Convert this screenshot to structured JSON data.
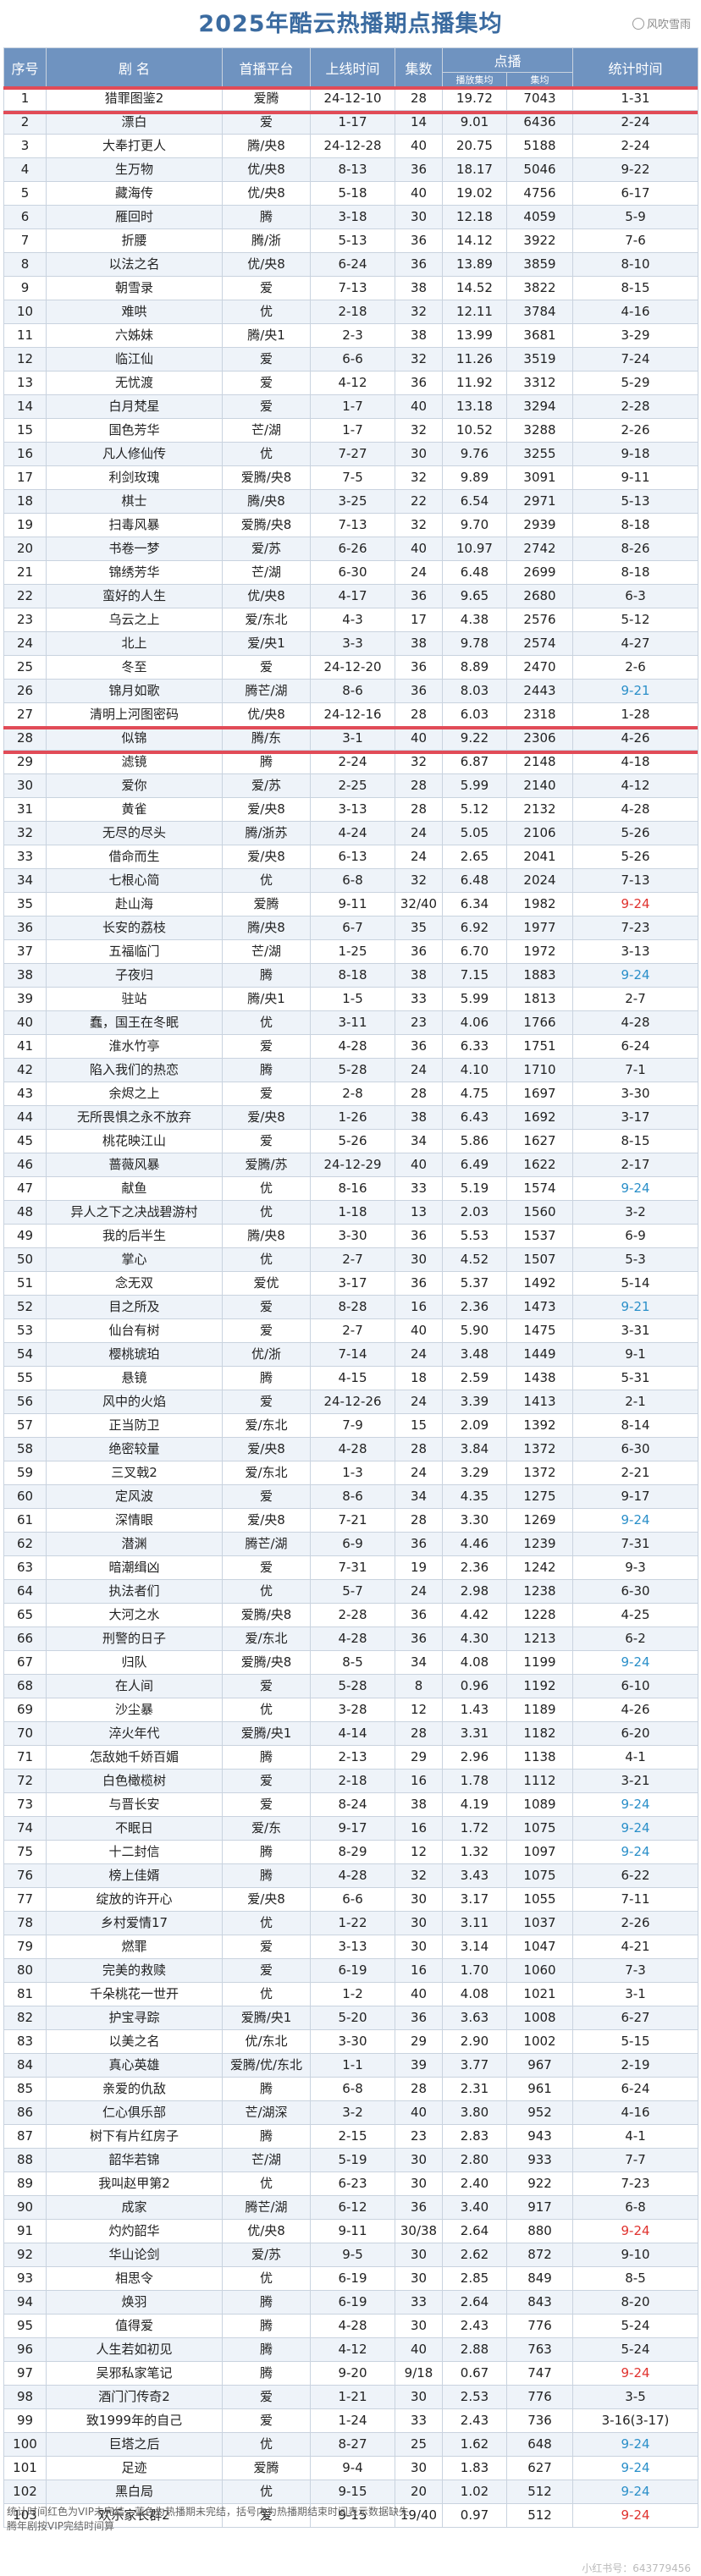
{
  "title": "2025年酷云热播期点播集均",
  "watermark_top": "风吹雪雨",
  "headers": {
    "seq": "序号",
    "name": "剧 名",
    "platform": "首播平台",
    "online": "上线时间",
    "episodes": "集数",
    "plays": "点播",
    "sub1": "播放集均",
    "sub2": "集均",
    "stat": "统计时间"
  },
  "rows": [
    [
      "1",
      "猎罪图鉴2",
      "爱腾",
      "24-12-10",
      "28",
      "19.72",
      "7043",
      "1-31"
    ],
    [
      "2",
      "漂白",
      "爱",
      "1-17",
      "14",
      "9.01",
      "6436",
      "2-24"
    ],
    [
      "3",
      "大奉打更人",
      "腾/央8",
      "24-12-28",
      "40",
      "20.75",
      "5188",
      "2-24"
    ],
    [
      "4",
      "生万物",
      "优/央8",
      "8-13",
      "36",
      "18.17",
      "5046",
      "9-22"
    ],
    [
      "5",
      "藏海传",
      "优/央8",
      "5-18",
      "40",
      "19.02",
      "4756",
      "6-17"
    ],
    [
      "6",
      "雁回时",
      "腾",
      "3-18",
      "30",
      "12.18",
      "4059",
      "5-9"
    ],
    [
      "7",
      "折腰",
      "腾/浙",
      "5-13",
      "36",
      "14.12",
      "3922",
      "7-6"
    ],
    [
      "8",
      "以法之名",
      "优/央8",
      "6-24",
      "36",
      "13.89",
      "3859",
      "8-10"
    ],
    [
      "9",
      "朝雪录",
      "爱",
      "7-13",
      "38",
      "14.52",
      "3822",
      "8-15"
    ],
    [
      "10",
      "难哄",
      "优",
      "2-18",
      "32",
      "12.11",
      "3784",
      "4-16"
    ],
    [
      "11",
      "六姊妹",
      "腾/央1",
      "2-3",
      "38",
      "13.99",
      "3681",
      "3-29"
    ],
    [
      "12",
      "临江仙",
      "爱",
      "6-6",
      "32",
      "11.26",
      "3519",
      "7-24"
    ],
    [
      "13",
      "无忧渡",
      "爱",
      "4-12",
      "36",
      "11.92",
      "3312",
      "5-29"
    ],
    [
      "14",
      "白月梵星",
      "爱",
      "1-7",
      "40",
      "13.18",
      "3294",
      "2-28"
    ],
    [
      "15",
      "国色芳华",
      "芒/湖",
      "1-7",
      "32",
      "10.52",
      "3288",
      "2-26"
    ],
    [
      "16",
      "凡人修仙传",
      "优",
      "7-27",
      "30",
      "9.76",
      "3255",
      "9-18"
    ],
    [
      "17",
      "利剑玫瑰",
      "爱腾/央8",
      "7-5",
      "32",
      "9.89",
      "3091",
      "9-11"
    ],
    [
      "18",
      "棋士",
      "腾/央8",
      "3-25",
      "22",
      "6.54",
      "2971",
      "5-13"
    ],
    [
      "19",
      "扫毒风暴",
      "爱腾/央8",
      "7-13",
      "32",
      "9.70",
      "2939",
      "8-18"
    ],
    [
      "20",
      "书卷一梦",
      "爱/苏",
      "6-26",
      "40",
      "10.97",
      "2742",
      "8-26"
    ],
    [
      "21",
      "锦绣芳华",
      "芒/湖",
      "6-30",
      "24",
      "6.48",
      "2699",
      "8-18"
    ],
    [
      "22",
      "蛮好的人生",
      "优/央8",
      "4-17",
      "36",
      "9.65",
      "2680",
      "6-3"
    ],
    [
      "23",
      "乌云之上",
      "爱/东北",
      "4-3",
      "17",
      "4.38",
      "2576",
      "5-12"
    ],
    [
      "24",
      "北上",
      "爱/央1",
      "3-3",
      "38",
      "9.78",
      "2574",
      "4-27"
    ],
    [
      "25",
      "冬至",
      "爱",
      "24-12-20",
      "36",
      "8.89",
      "2470",
      "2-6"
    ],
    [
      "26",
      "锦月如歌",
      "腾芒/湖",
      "8-6",
      "36",
      "8.03",
      "2443",
      "9-21"
    ],
    [
      "27",
      "清明上河图密码",
      "优/央8",
      "24-12-16",
      "28",
      "6.03",
      "2318",
      "1-28"
    ],
    [
      "28",
      "似锦",
      "腾/东",
      "3-1",
      "40",
      "9.22",
      "2306",
      "4-26"
    ],
    [
      "29",
      "滤镜",
      "腾",
      "2-24",
      "32",
      "6.87",
      "2148",
      "4-18"
    ],
    [
      "30",
      "爱你",
      "爱/苏",
      "2-25",
      "28",
      "5.99",
      "2140",
      "4-12"
    ],
    [
      "31",
      "黄雀",
      "爱/央8",
      "3-13",
      "28",
      "5.12",
      "2132",
      "4-28"
    ],
    [
      "32",
      "无尽的尽头",
      "腾/浙苏",
      "4-24",
      "24",
      "5.05",
      "2106",
      "5-26"
    ],
    [
      "33",
      "借命而生",
      "爱/央8",
      "6-13",
      "24",
      "2.65",
      "2041",
      "5-26"
    ],
    [
      "34",
      "七根心简",
      "优",
      "6-8",
      "32",
      "6.48",
      "2024",
      "7-13"
    ],
    [
      "35",
      "赴山海",
      "爱腾",
      "9-11",
      "32/40",
      "6.34",
      "1982",
      "9-24"
    ],
    [
      "36",
      "长安的荔枝",
      "腾/央8",
      "6-7",
      "35",
      "6.92",
      "1977",
      "7-23"
    ],
    [
      "37",
      "五福临门",
      "芒/湖",
      "1-25",
      "36",
      "6.70",
      "1972",
      "3-13"
    ],
    [
      "38",
      "子夜归",
      "腾",
      "8-18",
      "38",
      "7.15",
      "1883",
      "9-24"
    ],
    [
      "39",
      "驻站",
      "腾/央1",
      "1-5",
      "33",
      "5.99",
      "1813",
      "2-7"
    ],
    [
      "40",
      "蠢，国王在冬眠",
      "优",
      "3-11",
      "23",
      "4.06",
      "1766",
      "4-28"
    ],
    [
      "41",
      "淮水竹亭",
      "爱",
      "4-28",
      "36",
      "6.33",
      "1751",
      "6-24"
    ],
    [
      "42",
      "陷入我们的热恋",
      "腾",
      "5-28",
      "24",
      "4.10",
      "1710",
      "7-1"
    ],
    [
      "43",
      "余烬之上",
      "爱",
      "2-8",
      "28",
      "4.75",
      "1697",
      "3-30"
    ],
    [
      "44",
      "无所畏惧之永不放弃",
      "爱/央8",
      "1-26",
      "38",
      "6.43",
      "1692",
      "3-17"
    ],
    [
      "45",
      "桃花映江山",
      "爱",
      "5-26",
      "34",
      "5.86",
      "1627",
      "8-15"
    ],
    [
      "46",
      "蔷薇风暴",
      "爱腾/苏",
      "24-12-29",
      "40",
      "6.49",
      "1622",
      "2-17"
    ],
    [
      "47",
      "献鱼",
      "优",
      "8-16",
      "33",
      "5.19",
      "1574",
      "9-24"
    ],
    [
      "48",
      "异人之下之决战碧游村",
      "优",
      "1-18",
      "13",
      "2.03",
      "1560",
      "3-2"
    ],
    [
      "49",
      "我的后半生",
      "腾/央8",
      "3-30",
      "36",
      "5.53",
      "1537",
      "6-9"
    ],
    [
      "50",
      "掌心",
      "优",
      "2-7",
      "30",
      "4.52",
      "1507",
      "5-3"
    ],
    [
      "51",
      "念无双",
      "爱优",
      "3-17",
      "36",
      "5.37",
      "1492",
      "5-14"
    ],
    [
      "52",
      "目之所及",
      "爱",
      "8-28",
      "16",
      "2.36",
      "1473",
      "9-21"
    ],
    [
      "53",
      "仙台有树",
      "爱",
      "2-7",
      "40",
      "5.90",
      "1475",
      "3-31"
    ],
    [
      "54",
      "樱桃琥珀",
      "优/浙",
      "7-14",
      "24",
      "3.48",
      "1449",
      "9-1"
    ],
    [
      "55",
      "悬镜",
      "腾",
      "4-15",
      "18",
      "2.59",
      "1438",
      "5-31"
    ],
    [
      "56",
      "风中的火焰",
      "爱",
      "24-12-26",
      "24",
      "3.39",
      "1413",
      "2-1"
    ],
    [
      "57",
      "正当防卫",
      "爱/东北",
      "7-9",
      "15",
      "2.09",
      "1392",
      "8-14"
    ],
    [
      "58",
      "绝密较量",
      "爱/央8",
      "4-28",
      "28",
      "3.84",
      "1372",
      "6-30"
    ],
    [
      "59",
      "三叉戟2",
      "爱/东北",
      "1-3",
      "24",
      "3.29",
      "1372",
      "2-21"
    ],
    [
      "60",
      "定风波",
      "爱",
      "8-6",
      "34",
      "4.35",
      "1275",
      "9-17"
    ],
    [
      "61",
      "深情眼",
      "爱/央8",
      "7-21",
      "28",
      "3.30",
      "1269",
      "9-24"
    ],
    [
      "62",
      "潜渊",
      "腾芒/湖",
      "6-9",
      "36",
      "4.46",
      "1239",
      "7-31"
    ],
    [
      "63",
      "暗潮缉凶",
      "爱",
      "7-31",
      "19",
      "2.36",
      "1242",
      "9-3"
    ],
    [
      "64",
      "执法者们",
      "优",
      "5-7",
      "24",
      "2.98",
      "1238",
      "6-30"
    ],
    [
      "65",
      "大河之水",
      "爱腾/央8",
      "2-28",
      "36",
      "4.42",
      "1228",
      "4-25"
    ],
    [
      "66",
      "刑警的日子",
      "爱/东北",
      "4-28",
      "36",
      "4.30",
      "1213",
      "6-2"
    ],
    [
      "67",
      "归队",
      "爱腾/央8",
      "8-5",
      "34",
      "4.08",
      "1199",
      "9-24"
    ],
    [
      "68",
      "在人间",
      "爱",
      "5-28",
      "8",
      "0.96",
      "1192",
      "6-10"
    ],
    [
      "69",
      "沙尘暴",
      "优",
      "3-28",
      "12",
      "1.43",
      "1189",
      "4-26"
    ],
    [
      "70",
      "淬火年代",
      "爱腾/央1",
      "4-14",
      "28",
      "3.31",
      "1182",
      "6-20"
    ],
    [
      "71",
      "怎敌她千娇百媚",
      "腾",
      "2-13",
      "29",
      "2.96",
      "1138",
      "4-1"
    ],
    [
      "72",
      "白色橄榄树",
      "爱",
      "2-18",
      "16",
      "1.78",
      "1112",
      "3-21"
    ],
    [
      "73",
      "与晋长安",
      "爱",
      "8-24",
      "38",
      "4.19",
      "1089",
      "9-24"
    ],
    [
      "74",
      "不眠日",
      "爱/东",
      "9-17",
      "16",
      "1.72",
      "1075",
      "9-24"
    ],
    [
      "75",
      "十二封信",
      "腾",
      "8-29",
      "12",
      "1.32",
      "1097",
      "9-24"
    ],
    [
      "76",
      "榜上佳婿",
      "腾",
      "4-28",
      "32",
      "3.43",
      "1075",
      "6-22"
    ],
    [
      "77",
      "绽放的许开心",
      "爱/央8",
      "6-6",
      "30",
      "3.17",
      "1055",
      "7-11"
    ],
    [
      "78",
      "乡村爱情17",
      "优",
      "1-22",
      "30",
      "3.11",
      "1037",
      "2-26"
    ],
    [
      "79",
      "燃罪",
      "爱",
      "3-13",
      "30",
      "3.14",
      "1047",
      "4-21"
    ],
    [
      "80",
      "完美的救赎",
      "爱",
      "6-19",
      "16",
      "1.70",
      "1060",
      "7-3"
    ],
    [
      "81",
      "千朵桃花一世开",
      "优",
      "1-2",
      "40",
      "4.08",
      "1021",
      "3-1"
    ],
    [
      "82",
      "护宝寻踪",
      "爱腾/央1",
      "5-20",
      "36",
      "3.63",
      "1008",
      "6-27"
    ],
    [
      "83",
      "以美之名",
      "优/东北",
      "3-30",
      "29",
      "2.90",
      "1002",
      "5-15"
    ],
    [
      "84",
      "真心英雄",
      "爱腾/优/东北",
      "1-1",
      "39",
      "3.77",
      "967",
      "2-19"
    ],
    [
      "85",
      "亲爱的仇敌",
      "腾",
      "6-8",
      "28",
      "2.31",
      "961",
      "6-24"
    ],
    [
      "86",
      "仁心俱乐部",
      "芒/湖深",
      "3-2",
      "40",
      "3.80",
      "952",
      "4-16"
    ],
    [
      "87",
      "树下有片红房子",
      "腾",
      "2-15",
      "23",
      "2.83",
      "943",
      "4-1"
    ],
    [
      "88",
      "韶华若锦",
      "芒/湖",
      "5-19",
      "30",
      "2.80",
      "933",
      "7-7"
    ],
    [
      "89",
      "我叫赵甲第2",
      "优",
      "6-23",
      "30",
      "2.40",
      "922",
      "7-23"
    ],
    [
      "90",
      "成家",
      "腾芒/湖",
      "6-12",
      "36",
      "3.40",
      "917",
      "6-8"
    ],
    [
      "91",
      "灼灼韶华",
      "优/央8",
      "9-11",
      "30/38",
      "2.64",
      "880",
      "9-24"
    ],
    [
      "92",
      "华山论剑",
      "爱/苏",
      "9-5",
      "30",
      "2.62",
      "872",
      "9-10"
    ],
    [
      "93",
      "相思令",
      "优",
      "6-19",
      "30",
      "2.85",
      "849",
      "8-5"
    ],
    [
      "94",
      "焕羽",
      "腾",
      "6-19",
      "33",
      "2.64",
      "843",
      "8-20"
    ],
    [
      "95",
      "值得爱",
      "腾",
      "4-28",
      "30",
      "2.43",
      "776",
      "5-24"
    ],
    [
      "96",
      "人生若如初见",
      "腾",
      "4-12",
      "40",
      "2.88",
      "763",
      "5-24"
    ],
    [
      "97",
      "吴邪私家笔记",
      "腾",
      "9-20",
      "9/18",
      "0.67",
      "747",
      "9-24"
    ],
    [
      "98",
      "酒门门传奇2",
      "爱",
      "1-21",
      "30",
      "2.53",
      "776",
      "3-5"
    ],
    [
      "99",
      "致1999年的自己",
      "爱",
      "1-24",
      "33",
      "2.43",
      "736",
      "3-16(3-17)"
    ],
    [
      "100",
      "巨塔之后",
      "优",
      "8-27",
      "25",
      "1.62",
      "648",
      "9-24"
    ],
    [
      "101",
      "足迹",
      "爱腾",
      "9-4",
      "30",
      "1.83",
      "627",
      "9-24"
    ],
    [
      "102",
      "黑白局",
      "优",
      "9-15",
      "20",
      "1.02",
      "512",
      "9-24"
    ],
    [
      "103",
      "欢乐家长群2",
      "爱",
      "9-15",
      "19/40",
      "0.97",
      "512",
      "9-24"
    ]
  ],
  "stat_colors": [
    "",
    "",
    "",
    "",
    "",
    "",
    "",
    "",
    "",
    "",
    "",
    "",
    "",
    "",
    "",
    "",
    "",
    "",
    "",
    "",
    "",
    "",
    "",
    "",
    "",
    "blue",
    "",
    "",
    "",
    "",
    "",
    "",
    "",
    "",
    "red",
    "",
    "",
    "blue",
    "",
    "",
    "",
    "",
    "",
    "",
    "",
    "",
    "blue",
    "",
    "",
    "",
    "",
    "blue",
    "",
    "",
    "",
    "",
    "",
    "",
    "",
    "",
    "blue",
    "",
    "",
    "",
    "",
    "",
    "blue",
    "",
    "",
    "",
    "",
    "",
    "blue",
    "blue",
    "blue",
    "",
    "",
    "",
    "",
    "",
    "",
    "",
    "",
    "",
    "",
    "",
    "",
    "",
    "",
    "",
    "red",
    "",
    "",
    "",
    "",
    "",
    "red",
    "",
    "",
    "blue",
    "blue",
    "blue",
    "red"
  ],
  "footer": [
    "统计时间红色为VIP未完结，蓝色为热播期未完结，括号内为热播期结束时间表示数据缺失",
    "腾年剧按VIP完结时间算"
  ],
  "watermark_bottom": "小红书号：643779456",
  "colors": {
    "header_bg": "#6f93c0",
    "title": "#3b6ba0",
    "highlight": "#e14b57",
    "red": "#e0322e",
    "blue": "#2a8fc9"
  }
}
